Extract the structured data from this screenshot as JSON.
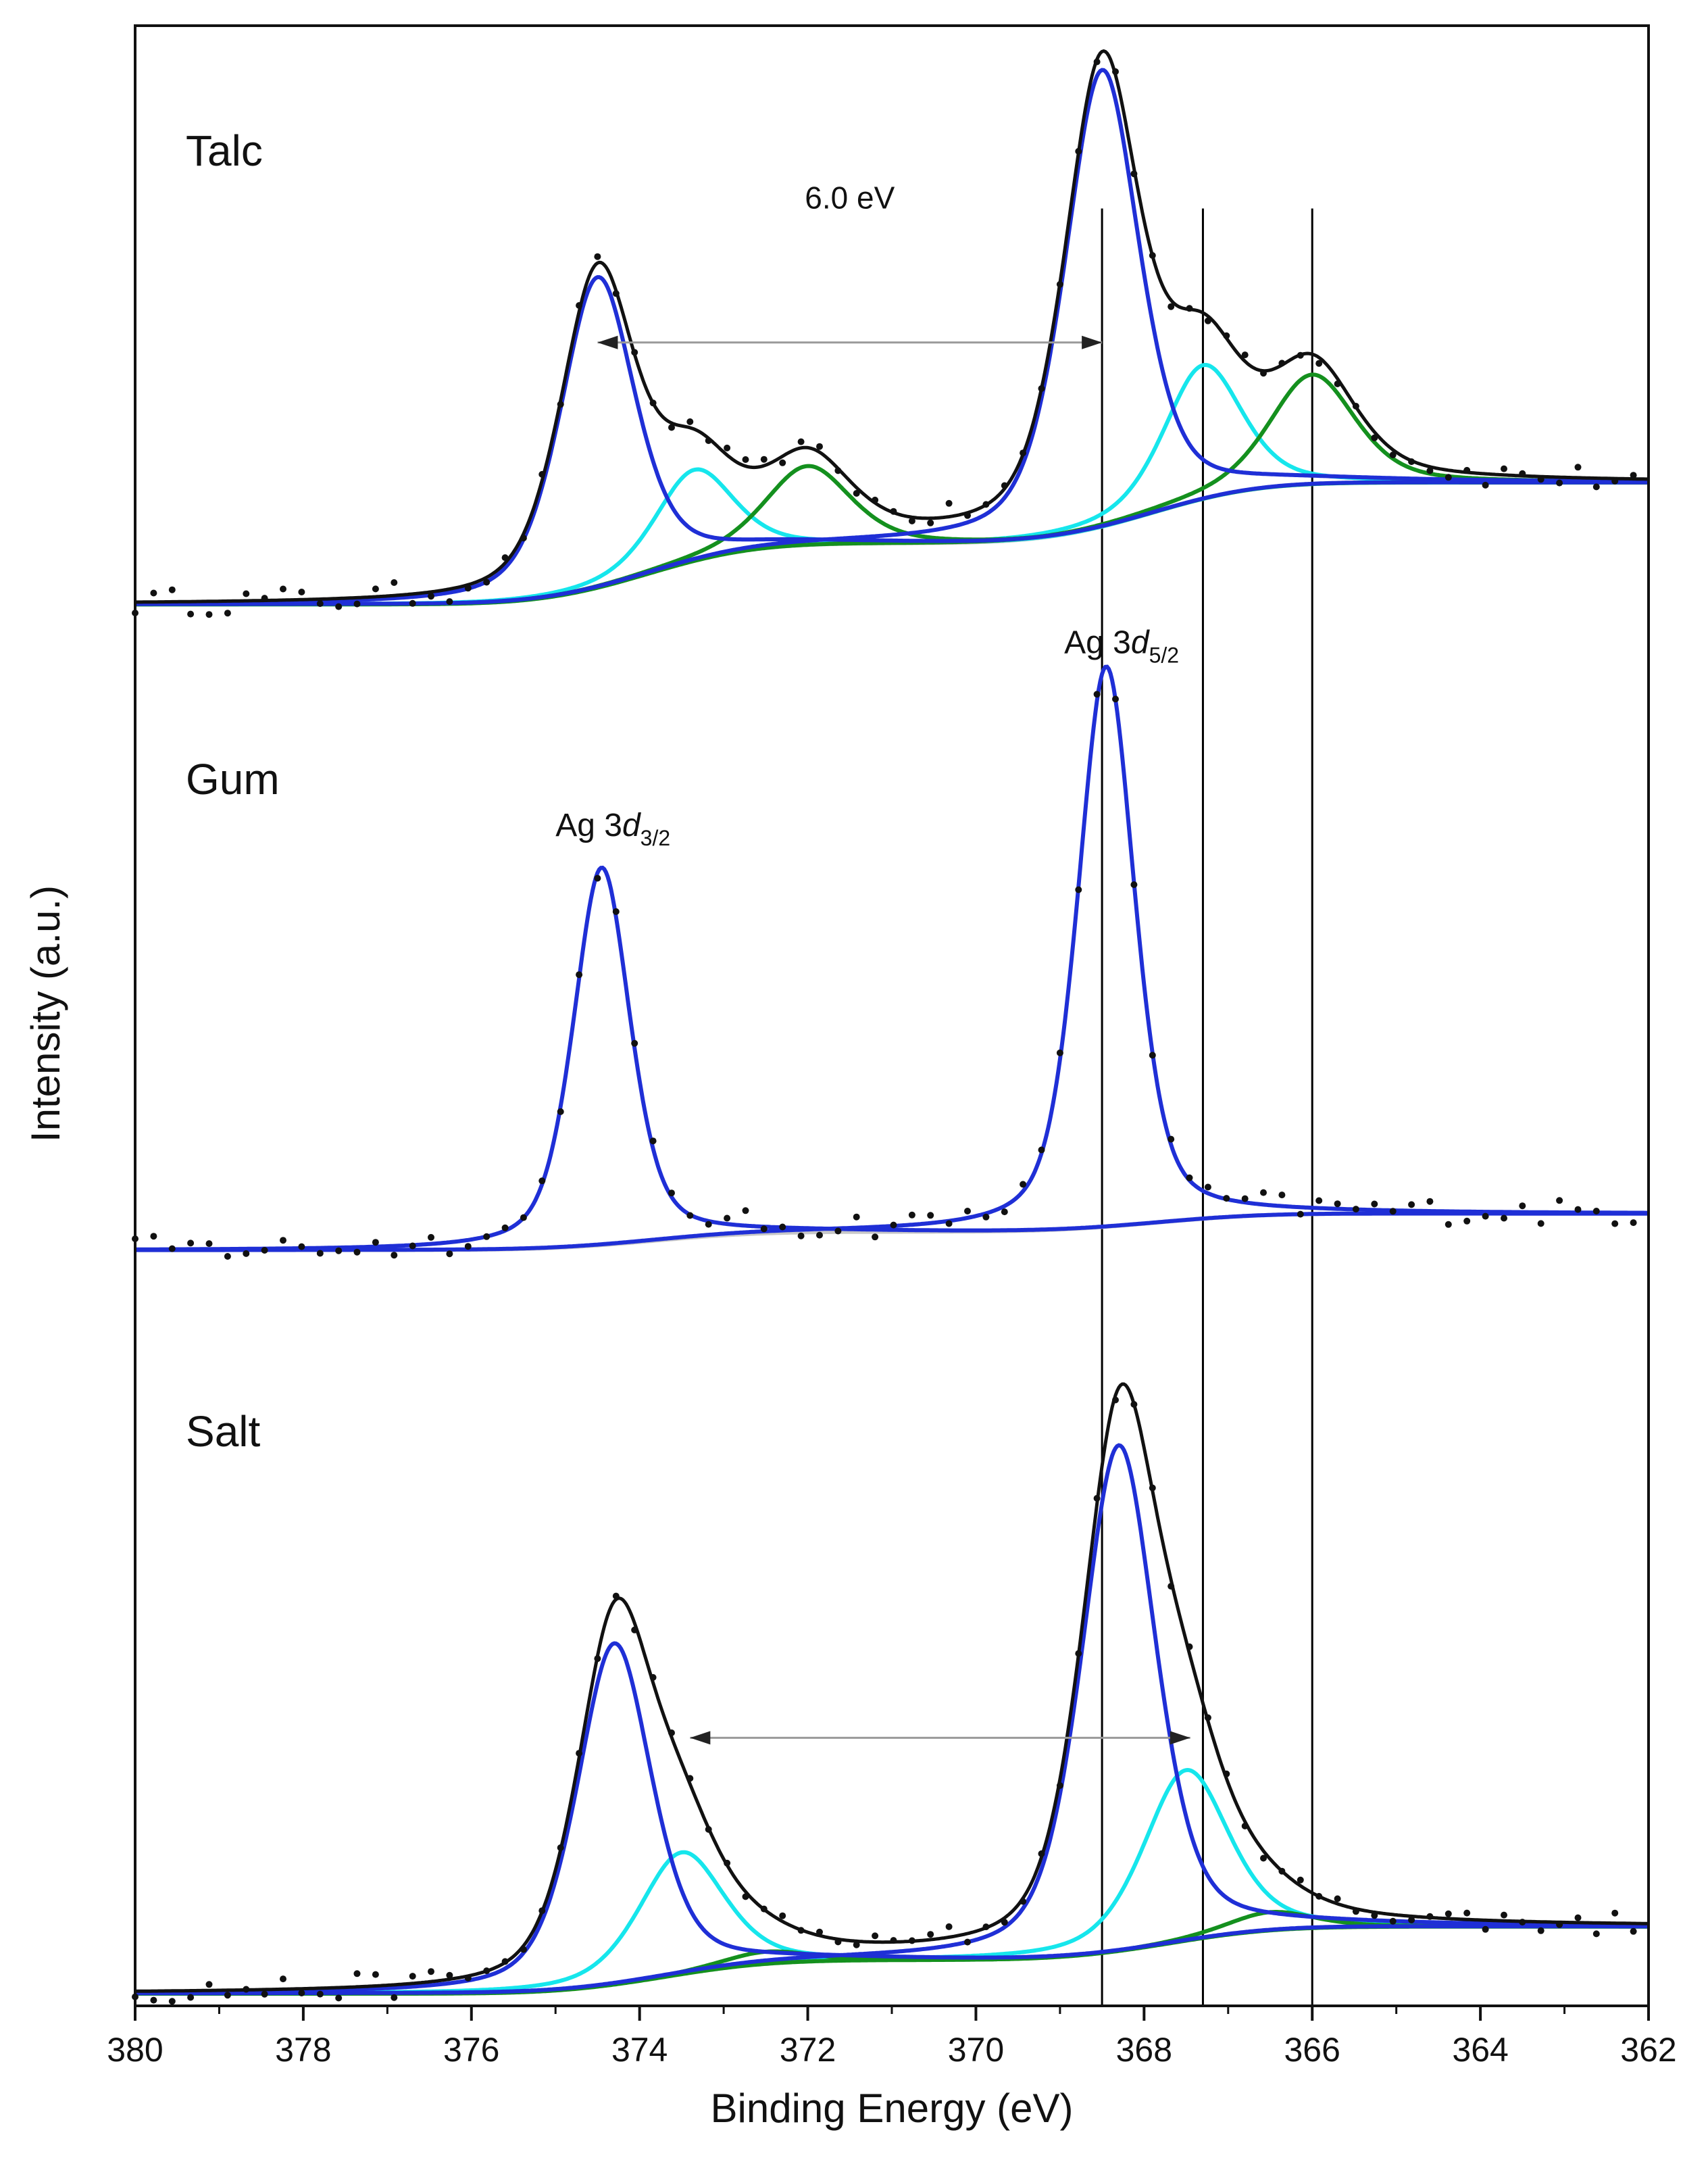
{
  "chart_data": {
    "type": "line",
    "title": "",
    "xlabel": "Binding Energy (eV)",
    "ylabel": "Intensity (a.u.)",
    "xlim": [
      380,
      362
    ],
    "x_reversed": true,
    "x_ticks": [
      380,
      378,
      376,
      374,
      372,
      370,
      368,
      366,
      364,
      362
    ],
    "x_tick_labels": [
      "380",
      "378",
      "376",
      "374",
      "372",
      "370",
      "368",
      "366",
      "364",
      "362"
    ],
    "ylim": [
      0,
      3.25
    ],
    "y_ticks": [],
    "grid": false,
    "legend": "none",
    "colors": {
      "data_points": "#111111",
      "envelope": "#111111",
      "component_metal": "#1f2fd6",
      "component_cyan": "#16e6ec",
      "component_green": "#14901e",
      "background": "#c8c8c8",
      "reference_line": "#000000",
      "arrow": "#9a9a9a"
    },
    "panels": [
      {
        "label": "Talc",
        "baseline_left": 2.5,
        "baseline_right": 2.3,
        "peaks": [
          {
            "name": "Ag 3d3/2",
            "center": 374.5,
            "height": 0.51,
            "fwhm": 1.05,
            "color_key": "component_metal"
          },
          {
            "name": "Ag 3d5/2",
            "center": 368.5,
            "height": 0.75,
            "fwhm": 1.05,
            "color_key": "component_metal"
          },
          {
            "name": "cyan 3d3/2",
            "center": 373.35,
            "height": 0.15,
            "fwhm": 1.1,
            "color_key": "component_cyan"
          },
          {
            "name": "cyan 3d5/2",
            "center": 367.3,
            "height": 0.22,
            "fwhm": 1.1,
            "color_key": "component_cyan"
          },
          {
            "name": "green 3d3/2",
            "center": 372.0,
            "height": 0.13,
            "fwhm": 1.2,
            "color_key": "component_green"
          },
          {
            "name": "green 3d5/2",
            "center": 366.0,
            "height": 0.18,
            "fwhm": 1.2,
            "color_key": "component_green"
          }
        ]
      },
      {
        "label": "Gum",
        "baseline_left": 1.3,
        "baseline_right": 1.24,
        "peaks": [
          {
            "name": "Ag 3d3/2",
            "center": 374.45,
            "height": 0.62,
            "fwhm": 0.8,
            "color_key": "component_metal"
          },
          {
            "name": "Ag 3d5/2",
            "center": 368.45,
            "height": 0.92,
            "fwhm": 0.8,
            "color_key": "component_metal"
          }
        ]
      },
      {
        "label": "Salt",
        "baseline_left": 0.13,
        "baseline_right": 0.02,
        "peaks": [
          {
            "name": "Ag 3d3/2",
            "center": 374.3,
            "height": 0.56,
            "fwhm": 1.05,
            "color_key": "component_metal"
          },
          {
            "name": "Ag 3d5/2",
            "center": 368.3,
            "height": 0.83,
            "fwhm": 1.05,
            "color_key": "component_metal"
          },
          {
            "name": "cyan 3d3/2",
            "center": 373.5,
            "height": 0.2,
            "fwhm": 1.2,
            "color_key": "component_cyan"
          },
          {
            "name": "cyan 3d5/2",
            "center": 367.5,
            "height": 0.28,
            "fwhm": 1.2,
            "color_key": "component_cyan"
          },
          {
            "name": "green 3d3/2",
            "center": 372.5,
            "height": 0.02,
            "fwhm": 1.2,
            "color_key": "component_green"
          },
          {
            "name": "green 3d5/2",
            "center": 366.5,
            "height": 0.03,
            "fwhm": 1.2,
            "color_key": "component_green"
          }
        ]
      }
    ],
    "reference_lines": [
      368.5,
      367.3,
      366.0
    ],
    "annotations": [
      {
        "text": "6.0 eV",
        "x": 371.5,
        "y": 2.95
      },
      {
        "text_main": "Ag 3",
        "text_italic": "d",
        "text_sub": "3/2",
        "x": 375.0,
        "y": 1.92
      },
      {
        "text_main": "Ag 3",
        "text_italic": "d",
        "text_sub": "5/2",
        "x": 368.95,
        "y": 2.22
      }
    ],
    "arrows": [
      {
        "x1": 374.5,
        "x2": 368.5,
        "y": 2.73
      },
      {
        "x1": 373.4,
        "x2": 367.45,
        "y": 0.44
      }
    ]
  }
}
